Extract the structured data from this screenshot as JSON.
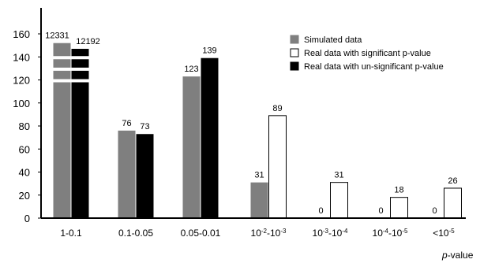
{
  "chart_data": {
    "type": "bar",
    "xlabel": "p-value",
    "ylabel": "",
    "ylim": [
      0,
      160
    ],
    "yticks": [
      0,
      20,
      40,
      60,
      80,
      100,
      120,
      140,
      160
    ],
    "grid": false,
    "legend_position": "top-right",
    "categories": [
      {
        "base": "1-0.1",
        "sup": "",
        "rest": ""
      },
      {
        "base": "0.1-0.05",
        "sup": "",
        "rest": ""
      },
      {
        "base": "0.05-0.01",
        "sup": "",
        "rest": ""
      },
      {
        "parts": [
          [
            "10",
            ""
          ],
          [
            "-2",
            "sup"
          ],
          [
            "-10",
            ""
          ],
          [
            "-3",
            "sup"
          ]
        ]
      },
      {
        "parts": [
          [
            "10",
            ""
          ],
          [
            "-3",
            "sup"
          ],
          [
            "-10",
            ""
          ],
          [
            "-4",
            "sup"
          ]
        ]
      },
      {
        "parts": [
          [
            "10",
            ""
          ],
          [
            "-4",
            "sup"
          ],
          [
            "-10",
            ""
          ],
          [
            "-5",
            "sup"
          ]
        ]
      },
      {
        "parts": [
          [
            "<10",
            ""
          ],
          [
            "-5",
            "sup"
          ]
        ]
      }
    ],
    "series": [
      {
        "name": "Simulated data",
        "color": "#7f7f7f",
        "stroke": "#7f7f7f",
        "values": [
          12331,
          76,
          123,
          31,
          0,
          0,
          0
        ],
        "labels": [
          "12331",
          "76",
          "123",
          "31",
          "0",
          "0",
          "0"
        ]
      },
      {
        "name": "Real data with significant p-value",
        "color": "#ffffff",
        "stroke": "#000000",
        "values": [
          null,
          null,
          null,
          89,
          31,
          18,
          26
        ],
        "labels": [
          "",
          "",
          "",
          "89",
          "31",
          "18",
          "26"
        ]
      },
      {
        "name": "Real data with un-significant p-value",
        "color": "#000000",
        "stroke": "#000000",
        "values": [
          12192,
          73,
          139,
          null,
          null,
          null,
          null
        ],
        "labels": [
          "12192",
          "73",
          "139",
          "",
          "",
          "",
          ""
        ]
      }
    ],
    "axis_break": {
      "category": "1-0.1",
      "note": "bars truncated with breaks"
    }
  }
}
